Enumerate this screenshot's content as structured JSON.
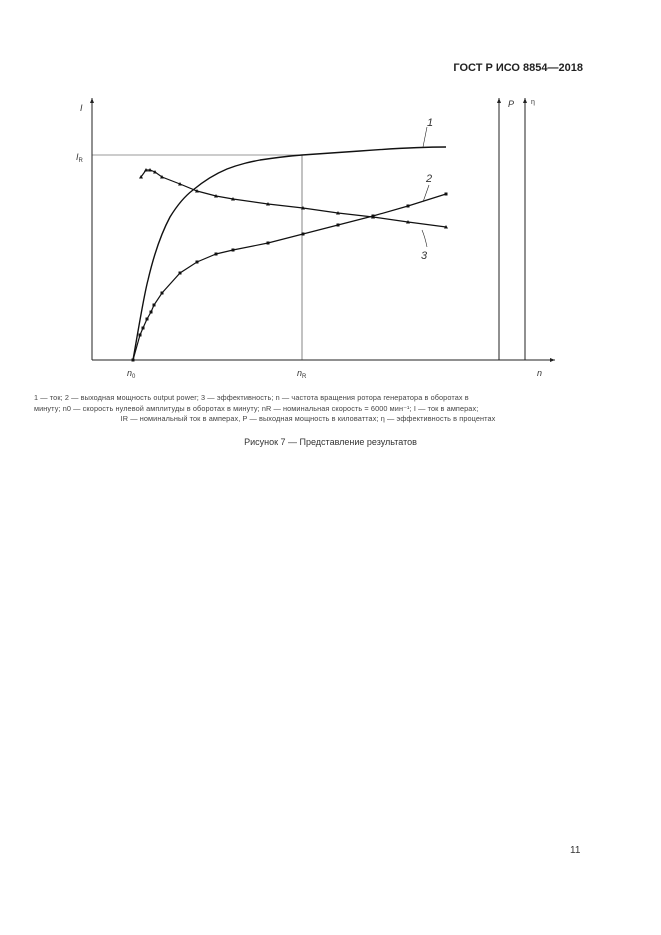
{
  "header": {
    "standard": "ГОСТ Р ИСО 8854—2018"
  },
  "figure": {
    "axis_labels": {
      "y_current": "I",
      "x_speed": "n",
      "y_power": "P",
      "y_efficiency": "η"
    },
    "tick_labels": {
      "n0": "n",
      "n0_sub": "0",
      "nR": "n",
      "nR_sub": "R",
      "IR": "I",
      "IR_sub": "R"
    },
    "curve_labels": [
      "1",
      "2",
      "3"
    ],
    "legend": {
      "line1": "1 — ток; 2 — выходная мощность output power; 3 — эффективность; n — частота вращения ротора генератора в оборотах в",
      "line2": "минуту; n0 — скорость нулевой амплитуды в оборотах в минуту; nR — номинальная скорость = 6000 мин⁻¹; I — ток в амперах;",
      "line3": "IR — номинальный ток в амперах, P — выходная мощность в киловаттах; η — эффективность в процентах"
    },
    "caption": "Рисунок 7 — Представление результатов"
  },
  "page_number": "11"
}
